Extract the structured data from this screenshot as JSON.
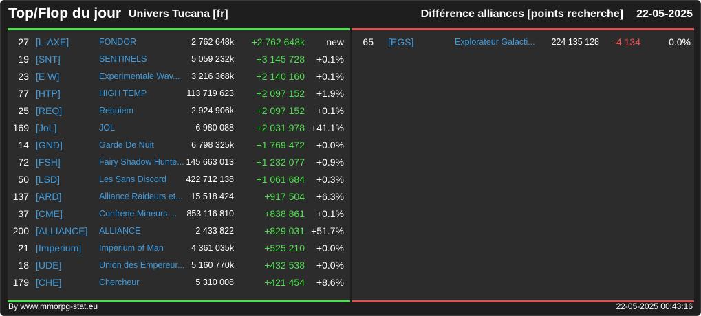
{
  "header": {
    "title": "Top/Flop du jour",
    "universe": "Univers Tucana [fr]",
    "subtitle": "Différence alliances [points recherche]",
    "date": "22-05-2025"
  },
  "colors": {
    "top_accent": "#4ee04e",
    "flop_accent": "#e05050",
    "tag_color": "#3b9be0",
    "background": "#2c2c2c"
  },
  "top": [
    {
      "rank": "27",
      "tag": "[L-AXE]",
      "name": "FONDOR",
      "points": "2 762 648k",
      "diff": "+2 762 648k",
      "pct": "new"
    },
    {
      "rank": "19",
      "tag": "[SNT]",
      "name": "SENTINELS",
      "points": "5 059 232k",
      "diff": "+3 145 728",
      "pct": "+0.1%"
    },
    {
      "rank": "23",
      "tag": "[E W]",
      "name": "Experimentale Wav...",
      "points": "3 216 368k",
      "diff": "+2 140 160",
      "pct": "+0.1%"
    },
    {
      "rank": "77",
      "tag": "[HTP]",
      "name": "HIGH TEMP",
      "points": "113 719 623",
      "diff": "+2 097 152",
      "pct": "+1.9%"
    },
    {
      "rank": "25",
      "tag": "[REQ]",
      "name": "Requiem",
      "points": "2 924 906k",
      "diff": "+2 097 152",
      "pct": "+0.1%"
    },
    {
      "rank": "169",
      "tag": "[JoL]",
      "name": "JOL",
      "points": "6 980 088",
      "diff": "+2 031 978",
      "pct": "+41.1%"
    },
    {
      "rank": "14",
      "tag": "[GND]",
      "name": "Garde De Nuit",
      "points": "6 798 325k",
      "diff": "+1 769 472",
      "pct": "+0.0%"
    },
    {
      "rank": "72",
      "tag": "[FSH]",
      "name": "Fairy Shadow Hunte...",
      "points": "145 663 013",
      "diff": "+1 232 077",
      "pct": "+0.9%"
    },
    {
      "rank": "50",
      "tag": "[LSD]",
      "name": "Les Sans Discord",
      "points": "422 712 138",
      "diff": "+1 061 684",
      "pct": "+0.3%"
    },
    {
      "rank": "137",
      "tag": "[ARD]",
      "name": "Alliance Raideurs et...",
      "points": "15 518 424",
      "diff": "+917 504",
      "pct": "+6.3%"
    },
    {
      "rank": "37",
      "tag": "[CME]",
      "name": "Confrerie Mineurs ...",
      "points": "853 116 810",
      "diff": "+838 861",
      "pct": "+0.1%"
    },
    {
      "rank": "200",
      "tag": "[ALLIANCE]",
      "name": "ALLIANCE",
      "points": "2 433 822",
      "diff": "+829 031",
      "pct": "+51.7%"
    },
    {
      "rank": "21",
      "tag": "[Imperium]",
      "name": "Imperium of Man",
      "points": "4 361 035k",
      "diff": "+525 210",
      "pct": "+0.0%"
    },
    {
      "rank": "18",
      "tag": "[UDE]",
      "name": "Union des Empereur...",
      "points": "5 160 770k",
      "diff": "+432 538",
      "pct": "+0.0%"
    },
    {
      "rank": "179",
      "tag": "[CHE]",
      "name": "Chercheur",
      "points": "5 310 008",
      "diff": "+421 454",
      "pct": "+8.6%"
    }
  ],
  "flop": [
    {
      "rank": "65",
      "tag": "[EGS]",
      "name": "Explorateur Galacti...",
      "points": "224 135 128",
      "diff": "-4 134",
      "pct": "0.0%"
    }
  ],
  "footer": {
    "source": "By www.mmorpg-stat.eu",
    "timestamp": "22-05-2025 00:43:16"
  }
}
